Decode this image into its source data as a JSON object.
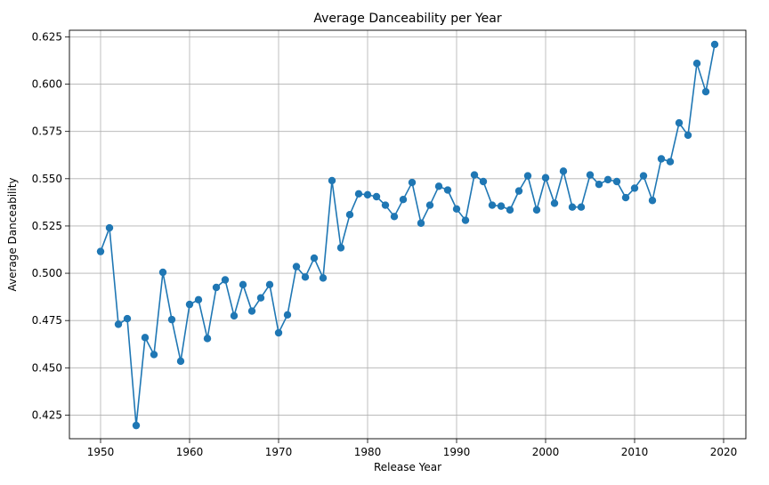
{
  "chart_data": {
    "type": "line",
    "title": "Average Danceability per Year",
    "xlabel": "Release Year",
    "ylabel": "Average Danceability",
    "xlim": [
      1946.5,
      2022.5
    ],
    "ylim": [
      0.4125,
      0.6285
    ],
    "grid": true,
    "markers": true,
    "color": "#1f77b4",
    "xticks": [
      1950,
      1960,
      1970,
      1980,
      1990,
      2000,
      2010,
      2020
    ],
    "xtick_labels": [
      "1950",
      "1960",
      "1970",
      "1980",
      "1990",
      "2000",
      "2010",
      "2020"
    ],
    "yticks": [
      0.425,
      0.45,
      0.475,
      0.5,
      0.525,
      0.55,
      0.575,
      0.6,
      0.625
    ],
    "ytick_labels": [
      "0.425",
      "0.450",
      "0.475",
      "0.500",
      "0.525",
      "0.550",
      "0.575",
      "0.600",
      "0.625"
    ],
    "series": [
      {
        "x": [
          1950,
          1951,
          1952,
          1953,
          1954,
          1955,
          1956,
          1957,
          1958,
          1959,
          1960,
          1961,
          1962,
          1963,
          1964,
          1965,
          1966,
          1967,
          1968,
          1969,
          1970,
          1971,
          1972,
          1973,
          1974,
          1975,
          1976,
          1977,
          1978,
          1979,
          1980,
          1981,
          1982,
          1983,
          1984,
          1985,
          1986,
          1987,
          1988,
          1989,
          1990,
          1991,
          1992,
          1993,
          1994,
          1995,
          1996,
          1997,
          1998,
          1999,
          2000,
          2001,
          2002,
          2003,
          2004,
          2005,
          2006,
          2007,
          2008,
          2009,
          2010,
          2011,
          2012,
          2013,
          2014,
          2015,
          2016,
          2017,
          2018,
          2019
        ],
        "y": [
          0.5115,
          0.524,
          0.473,
          0.476,
          0.4195,
          0.466,
          0.457,
          0.5005,
          0.4755,
          0.4535,
          0.4835,
          0.486,
          0.4655,
          0.4925,
          0.4965,
          0.4775,
          0.494,
          0.48,
          0.487,
          0.494,
          0.4685,
          0.478,
          0.5035,
          0.498,
          0.508,
          0.4975,
          0.549,
          0.5135,
          0.531,
          0.542,
          0.5415,
          0.5405,
          0.536,
          0.53,
          0.539,
          0.548,
          0.5265,
          0.536,
          0.546,
          0.544,
          0.534,
          0.528,
          0.552,
          0.5485,
          0.536,
          0.5355,
          0.5335,
          0.5435,
          0.5515,
          0.5335,
          0.5505,
          0.537,
          0.554,
          0.535,
          0.535,
          0.552,
          0.547,
          0.5495,
          0.5485,
          0.54,
          0.545,
          0.5515,
          0.5385,
          0.5605,
          0.559,
          0.5795,
          0.573,
          0.611,
          0.596,
          0.621
        ]
      }
    ]
  }
}
